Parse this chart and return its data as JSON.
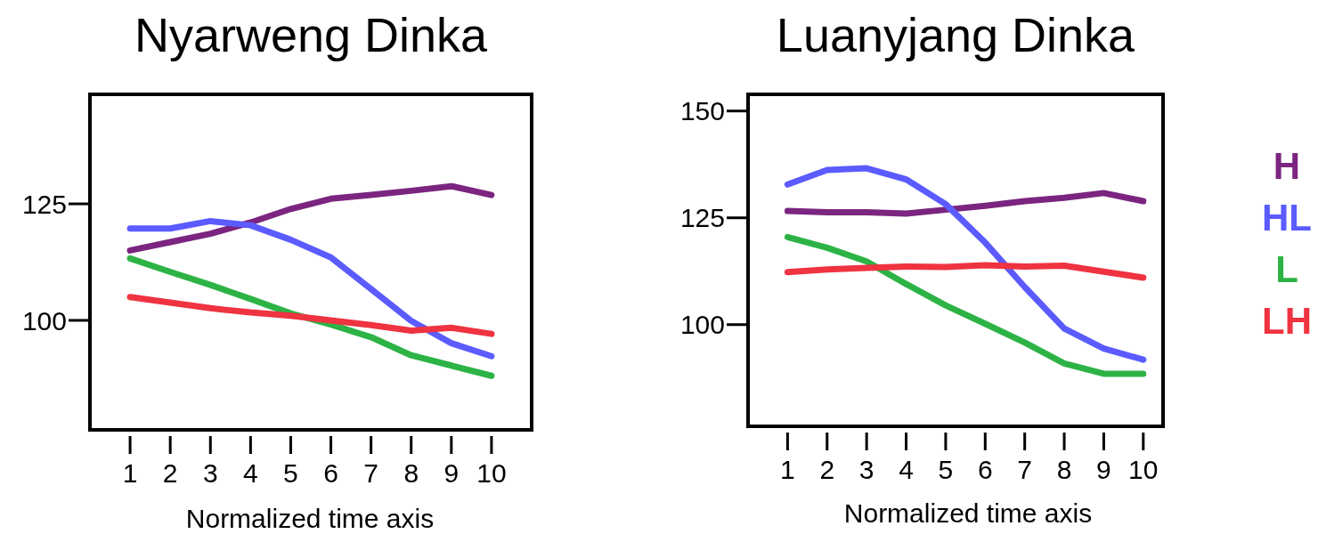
{
  "chart_data": [
    {
      "type": "line",
      "title": "Nyarweng Dinka",
      "xlabel": "Normalized time axis",
      "x": [
        1,
        2,
        3,
        4,
        5,
        6,
        7,
        8,
        9,
        10
      ],
      "xlim": [
        0,
        11
      ],
      "xticks": [
        1,
        2,
        3,
        4,
        5,
        6,
        7,
        8,
        9,
        10
      ],
      "ylim": [
        76.5,
        148.5
      ],
      "yticks": [
        100,
        125
      ],
      "grid": false,
      "legend": false,
      "marker": "none",
      "line_style": "solid",
      "series": [
        {
          "color": "#7b2580",
          "values": [
            115.0,
            116.8,
            118.6,
            121.0,
            123.9,
            126.1,
            126.9,
            127.8,
            128.8,
            126.9
          ]
        },
        {
          "color": "#5b5bff",
          "values": [
            119.7,
            119.7,
            121.3,
            120.4,
            117.3,
            113.5,
            106.7,
            99.9,
            95.1,
            92.3
          ]
        },
        {
          "color": "#2db345",
          "values": [
            113.3,
            110.4,
            107.6,
            104.6,
            101.5,
            99.1,
            96.4,
            92.5,
            90.3,
            88.1
          ]
        },
        {
          "color": "#ef3340",
          "values": [
            105.0,
            103.8,
            102.6,
            101.7,
            101.0,
            100.0,
            99.0,
            97.8,
            98.4,
            97.1
          ]
        }
      ]
    },
    {
      "type": "line",
      "title": "Luanyjang Dinka",
      "xlabel": "Normalized time axis",
      "x": [
        1,
        2,
        3,
        4,
        5,
        6,
        7,
        8,
        9,
        10
      ],
      "xlim": [
        0,
        10.5
      ],
      "xticks": [
        1,
        2,
        3,
        4,
        5,
        6,
        7,
        8,
        9,
        10
      ],
      "ylim": [
        76.2,
        153.9
      ],
      "yticks": [
        100,
        125,
        150
      ],
      "grid": false,
      "legend": "right",
      "marker": "none",
      "line_style": "solid",
      "series": [
        {
          "name": "H",
          "color": "#7b2580",
          "values": [
            126.6,
            126.3,
            126.3,
            126.0,
            126.9,
            127.8,
            128.9,
            129.7,
            130.8,
            128.9
          ]
        },
        {
          "name": "HL",
          "color": "#5b5bff",
          "values": [
            132.8,
            136.2,
            136.6,
            134.0,
            128.2,
            119.2,
            108.8,
            99.1,
            94.4,
            91.8
          ]
        },
        {
          "name": "L",
          "color": "#2db345",
          "values": [
            120.5,
            118.0,
            114.8,
            109.5,
            104.5,
            100.2,
            95.8,
            90.9,
            88.5,
            88.5
          ]
        },
        {
          "name": "LH",
          "color": "#ef3340",
          "values": [
            112.3,
            112.9,
            113.3,
            113.6,
            113.5,
            113.9,
            113.6,
            113.8,
            112.4,
            111.0
          ]
        }
      ]
    }
  ]
}
